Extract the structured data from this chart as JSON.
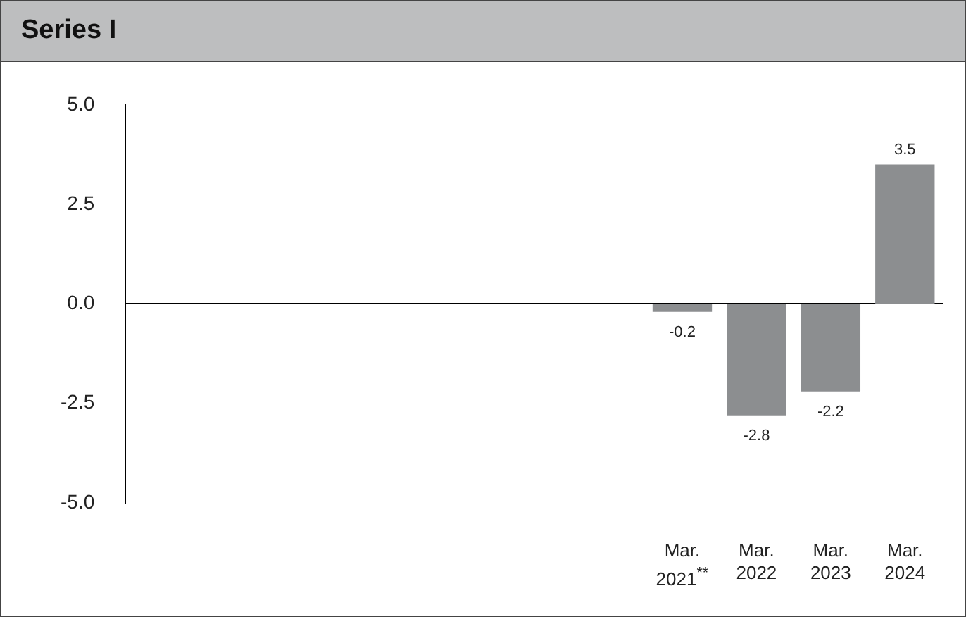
{
  "chart_data": {
    "type": "bar",
    "title": "Series I",
    "categories": [
      null,
      null,
      null,
      null,
      null,
      null,
      null,
      "Mar. 2021$^{**}$",
      "Mar. 2022",
      "Mar. 2023",
      "Mar. 2024"
    ],
    "values": [
      null,
      null,
      null,
      null,
      null,
      null,
      null,
      -0.2,
      -2.8,
      -2.2,
      3.5
    ],
    "color": "#8c8e90",
    "ylim": [
      -5,
      5
    ],
    "yticks": [
      {
        "value": -5,
        "label": "-5.0"
      },
      {
        "value": -2.5,
        "label": "-2.5"
      },
      {
        "value": 0,
        "label": "0.0"
      },
      {
        "value": 2.5,
        "label": "2.5"
      },
      {
        "value": 5,
        "label": "5.0"
      }
    ],
    "data_labels": true,
    "legend": false
  }
}
